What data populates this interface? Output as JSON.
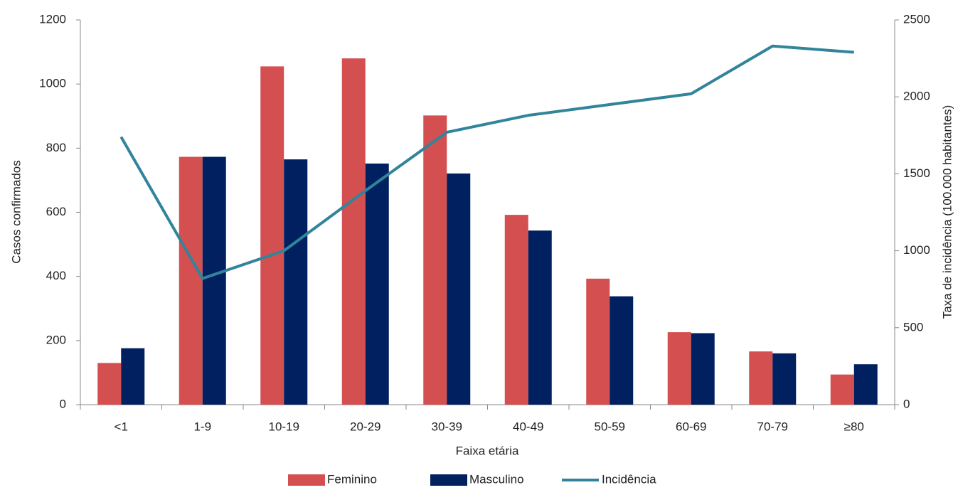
{
  "chart_data": {
    "type": "bar",
    "x_label": "Faixa etária",
    "y_label": "Casos confirmados",
    "y2_label": "Taxa de incidência (100.000 habitantes)",
    "categories": [
      "<1",
      "1-9",
      "10-19",
      "20-29",
      "30-39",
      "40-49",
      "50-59",
      "60-69",
      "70-79",
      "≥80"
    ],
    "series": [
      {
        "name": "Feminino",
        "type": "bar",
        "color": "#d44f50",
        "values": [
          130,
          773,
          1055,
          1080,
          902,
          592,
          393,
          226,
          166,
          94
        ]
      },
      {
        "name": "Masculino",
        "type": "bar",
        "color": "#002060",
        "values": [
          176,
          773,
          765,
          752,
          721,
          543,
          338,
          223,
          160,
          126
        ]
      },
      {
        "name": "Incidência",
        "type": "line",
        "axis": "y2",
        "color": "#31849b",
        "values": [
          1740,
          820,
          1000,
          1390,
          1770,
          1880,
          1950,
          2020,
          2330,
          2290
        ]
      }
    ],
    "ylim": [
      0,
      1200
    ],
    "yticks": [
      0,
      200,
      400,
      600,
      800,
      1000,
      1200
    ],
    "y2lim": [
      0,
      2500
    ],
    "y2ticks": [
      0,
      500,
      1000,
      1500,
      2000,
      2500
    ],
    "grid": false,
    "legend": "bottom"
  }
}
